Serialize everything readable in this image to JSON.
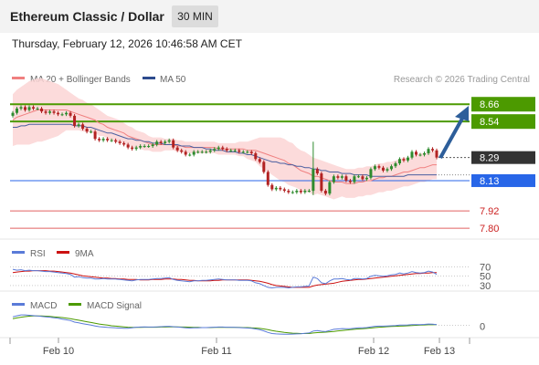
{
  "header": {
    "title": "Ethereum Classic / Dollar",
    "timeframe": "30 MIN",
    "datetime": "Thursday, February 12, 2026 10:46:58 AM CET"
  },
  "legend": {
    "ma20_label": "MA 20 + Bollinger Bands",
    "ma50_label": "MA 50",
    "copyright": "Research © 2026 Trading Central",
    "rsi_label": "RSI",
    "rsi9_label": "9MA",
    "macd_label": "MACD",
    "macd_signal_label": "MACD Signal"
  },
  "colors": {
    "green_level": "#4c9a00",
    "pivot_blue": "#2866e8",
    "red_level": "#e06060",
    "current_badge": "#333333",
    "arrow": "#2d5e9a",
    "ma20": "#f08080",
    "ma50": "#4a5fa0",
    "bollinger_fill": "#fbd5d5",
    "candle_up": "#2e8b2e",
    "candle_down": "#b22222",
    "rsi": "#5a7bd8",
    "rsi9": "#cc1111",
    "macd": "#5a7bd8",
    "macd_signal": "#4c9a00"
  },
  "chart_data": {
    "type": "candlestick",
    "instrument": "Ethereum Classic / Dollar",
    "interval": "30 MIN",
    "x_ticks": [
      "Feb 10",
      "Feb 11",
      "Feb 12",
      "Feb 13"
    ],
    "levels": [
      {
        "value": 8.66,
        "label": "8.66",
        "kind": "resistance"
      },
      {
        "value": 8.54,
        "label": "8.54",
        "kind": "resistance"
      },
      {
        "value": 8.29,
        "label": "8.29",
        "kind": "current"
      },
      {
        "value": 8.13,
        "label": "8.13",
        "kind": "pivot"
      },
      {
        "value": 7.92,
        "label": "7.92",
        "kind": "support"
      },
      {
        "value": 7.8,
        "label": "7.80",
        "kind": "support"
      }
    ],
    "closes": [
      8.6,
      8.63,
      8.64,
      8.62,
      8.64,
      8.63,
      8.63,
      8.61,
      8.6,
      8.61,
      8.6,
      8.59,
      8.59,
      8.6,
      8.58,
      8.51,
      8.52,
      8.49,
      8.47,
      8.47,
      8.42,
      8.41,
      8.42,
      8.41,
      8.41,
      8.4,
      8.39,
      8.38,
      8.36,
      8.35,
      8.36,
      8.37,
      8.37,
      8.37,
      8.38,
      8.4,
      8.39,
      8.4,
      8.41,
      8.36,
      8.34,
      8.33,
      8.31,
      8.31,
      8.33,
      8.33,
      8.33,
      8.33,
      8.34,
      8.35,
      8.36,
      8.35,
      8.34,
      8.34,
      8.34,
      8.33,
      8.33,
      8.33,
      8.32,
      8.28,
      8.26,
      8.19,
      8.1,
      8.07,
      8.08,
      8.07,
      8.06,
      8.05,
      8.05,
      8.06,
      8.05,
      8.06,
      8.06,
      8.21,
      8.18,
      8.06,
      8.04,
      8.12,
      8.16,
      8.15,
      8.16,
      8.13,
      8.12,
      8.16,
      8.16,
      8.14,
      8.15,
      8.21,
      8.23,
      8.22,
      8.2,
      8.21,
      8.23,
      8.25,
      8.28,
      8.27,
      8.29,
      8.33,
      8.31,
      8.31,
      8.32,
      8.35,
      8.34,
      8.29
    ],
    "ma20": [
      8.55,
      8.57,
      8.58,
      8.59,
      8.6,
      8.61,
      8.62,
      8.62,
      8.62,
      8.62,
      8.62,
      8.62,
      8.62,
      8.62,
      8.61,
      8.6,
      8.59,
      8.58,
      8.57,
      8.56,
      8.55,
      8.53,
      8.52,
      8.5,
      8.49,
      8.48,
      8.47,
      8.46,
      8.44,
      8.43,
      8.42,
      8.41,
      8.4,
      8.39,
      8.38,
      8.38,
      8.38,
      8.38,
      8.38,
      8.38,
      8.37,
      8.37,
      8.36,
      8.36,
      8.36,
      8.36,
      8.36,
      8.36,
      8.36,
      8.36,
      8.35,
      8.35,
      8.35,
      8.35,
      8.35,
      8.35,
      8.35,
      8.34,
      8.34,
      8.34,
      8.33,
      8.32,
      8.31,
      8.3,
      8.29,
      8.28,
      8.27,
      8.25,
      8.24,
      8.22,
      8.2,
      8.19,
      8.18,
      8.16,
      8.16,
      8.15,
      8.14,
      8.13,
      8.12,
      8.12,
      8.12,
      8.11,
      8.11,
      8.11,
      8.12,
      8.12,
      8.13,
      8.13,
      8.14,
      8.15,
      8.15,
      8.16,
      8.16,
      8.17,
      8.18,
      8.19,
      8.19,
      8.2,
      8.21,
      8.22,
      8.22,
      8.23,
      8.24,
      8.24
    ],
    "ma50": [
      8.5,
      8.5,
      8.51,
      8.51,
      8.52,
      8.52,
      8.52,
      8.52,
      8.52,
      8.52,
      8.52,
      8.52,
      8.52,
      8.52,
      8.52,
      8.51,
      8.51,
      8.51,
      8.5,
      8.5,
      8.49,
      8.48,
      8.47,
      8.46,
      8.46,
      8.45,
      8.44,
      8.43,
      8.42,
      8.42,
      8.41,
      8.41,
      8.4,
      8.4,
      8.39,
      8.39,
      8.39,
      8.38,
      8.38,
      8.38,
      8.38,
      8.37,
      8.37,
      8.37,
      8.36,
      8.36,
      8.36,
      8.35,
      8.35,
      8.34,
      8.34,
      8.34,
      8.33,
      8.33,
      8.33,
      8.32,
      8.32,
      8.31,
      8.31,
      8.3,
      8.29,
      8.28,
      8.27,
      8.26,
      8.26,
      8.25,
      8.25,
      8.24,
      8.24,
      8.23,
      8.23,
      8.22,
      8.22,
      8.21,
      8.21,
      8.2,
      8.2,
      8.19,
      8.19,
      8.19,
      8.18,
      8.18,
      8.18,
      8.17,
      8.17,
      8.17,
      8.17,
      8.16,
      8.16,
      8.16,
      8.16,
      8.16,
      8.16,
      8.16,
      8.16,
      8.16,
      8.17,
      8.17,
      8.17,
      8.17,
      8.17,
      8.17,
      8.17,
      8.17
    ],
    "bb_width": [
      0.18,
      0.19,
      0.2,
      0.21,
      0.22,
      0.22,
      0.22,
      0.22,
      0.21,
      0.2,
      0.19,
      0.18,
      0.16,
      0.14,
      0.13,
      0.12,
      0.11,
      0.11,
      0.1,
      0.1,
      0.09,
      0.09,
      0.08,
      0.08,
      0.08,
      0.08,
      0.08,
      0.07,
      0.07,
      0.07,
      0.06,
      0.06,
      0.06,
      0.05,
      0.05,
      0.05,
      0.05,
      0.04,
      0.04,
      0.04,
      0.04,
      0.04,
      0.04,
      0.04,
      0.04,
      0.04,
      0.04,
      0.04,
      0.04,
      0.04,
      0.04,
      0.04,
      0.04,
      0.04,
      0.04,
      0.05,
      0.05,
      0.06,
      0.07,
      0.08,
      0.1,
      0.11,
      0.12,
      0.13,
      0.14,
      0.15,
      0.15,
      0.15,
      0.15,
      0.14,
      0.14,
      0.14,
      0.13,
      0.13,
      0.12,
      0.12,
      0.12,
      0.12,
      0.12,
      0.11,
      0.1,
      0.1,
      0.1,
      0.1,
      0.1,
      0.1,
      0.1,
      0.1,
      0.1,
      0.1,
      0.1,
      0.1,
      0.1,
      0.1,
      0.1,
      0.1,
      0.1,
      0.1,
      0.1,
      0.1,
      0.1,
      0.1,
      0.1,
      0.1
    ],
    "rsi": [
      65,
      63,
      64,
      62,
      63,
      62,
      62,
      61,
      60,
      60,
      59,
      58,
      57,
      56,
      54,
      48,
      49,
      47,
      46,
      46,
      44,
      44,
      45,
      44,
      44,
      44,
      43,
      42,
      41,
      40,
      42,
      43,
      43,
      43,
      44,
      45,
      45,
      46,
      47,
      43,
      41,
      40,
      39,
      38,
      40,
      40,
      41,
      41,
      42,
      43,
      44,
      43,
      42,
      42,
      42,
      41,
      41,
      41,
      40,
      36,
      34,
      30,
      26,
      25,
      26,
      26,
      26,
      25,
      26,
      27,
      27,
      28,
      29,
      48,
      45,
      36,
      34,
      40,
      44,
      44,
      45,
      43,
      42,
      45,
      45,
      44,
      45,
      50,
      52,
      51,
      50,
      51,
      53,
      54,
      57,
      55,
      57,
      60,
      58,
      57,
      58,
      61,
      59,
      54
    ],
    "rsi9": [
      58,
      59,
      60,
      61,
      61,
      62,
      62,
      62,
      62,
      61,
      61,
      60,
      59,
      58,
      57,
      55,
      53,
      51,
      50,
      49,
      48,
      47,
      46,
      46,
      45,
      45,
      44,
      44,
      43,
      43,
      43,
      42,
      42,
      42,
      43,
      43,
      43,
      44,
      44,
      44,
      43,
      43,
      42,
      41,
      41,
      40,
      40,
      40,
      40,
      41,
      41,
      42,
      42,
      42,
      42,
      42,
      42,
      42,
      41,
      40,
      39,
      37,
      35,
      32,
      30,
      29,
      28,
      27,
      26,
      26,
      26,
      26,
      26,
      29,
      31,
      32,
      33,
      34,
      35,
      37,
      39,
      40,
      41,
      42,
      43,
      43,
      44,
      45,
      46,
      47,
      48,
      49,
      50,
      51,
      52,
      53,
      54,
      55,
      56,
      56,
      57,
      57,
      58,
      58
    ],
    "rsi_ticks": [
      "70",
      "50",
      "30"
    ],
    "macd": [
      0.06,
      0.065,
      0.07,
      0.07,
      0.068,
      0.066,
      0.064,
      0.062,
      0.06,
      0.058,
      0.055,
      0.052,
      0.048,
      0.044,
      0.04,
      0.032,
      0.028,
      0.024,
      0.02,
      0.016,
      0.012,
      0.008,
      0.006,
      0.004,
      0.003,
      0.002,
      0.001,
      0.0,
      0.0,
      0.002,
      0.005,
      0.006,
      0.007,
      0.006,
      0.006,
      0.007,
      0.008,
      0.009,
      0.01,
      0.008,
      0.006,
      0.004,
      0.002,
      0.001,
      0.002,
      0.002,
      0.003,
      0.003,
      0.004,
      0.005,
      0.006,
      0.006,
      0.005,
      0.005,
      0.004,
      0.003,
      0.002,
      0.001,
      0.0,
      -0.004,
      -0.008,
      -0.014,
      -0.022,
      -0.028,
      -0.03,
      -0.031,
      -0.032,
      -0.032,
      -0.031,
      -0.03,
      -0.029,
      -0.027,
      -0.025,
      -0.015,
      -0.012,
      -0.016,
      -0.018,
      -0.012,
      -0.006,
      -0.004,
      -0.002,
      -0.003,
      -0.003,
      0.0,
      0.002,
      0.002,
      0.003,
      0.007,
      0.01,
      0.011,
      0.011,
      0.012,
      0.013,
      0.014,
      0.016,
      0.016,
      0.017,
      0.019,
      0.019,
      0.019,
      0.02,
      0.022,
      0.021,
      0.019
    ],
    "macd_signal": [
      0.05,
      0.054,
      0.058,
      0.061,
      0.063,
      0.064,
      0.064,
      0.064,
      0.063,
      0.062,
      0.06,
      0.058,
      0.056,
      0.053,
      0.05,
      0.046,
      0.042,
      0.038,
      0.034,
      0.03,
      0.026,
      0.022,
      0.019,
      0.016,
      0.013,
      0.011,
      0.009,
      0.007,
      0.005,
      0.004,
      0.004,
      0.004,
      0.005,
      0.005,
      0.005,
      0.005,
      0.006,
      0.006,
      0.007,
      0.007,
      0.007,
      0.006,
      0.006,
      0.005,
      0.004,
      0.004,
      0.003,
      0.003,
      0.003,
      0.004,
      0.004,
      0.004,
      0.004,
      0.004,
      0.004,
      0.004,
      0.003,
      0.003,
      0.002,
      0.001,
      -0.001,
      -0.004,
      -0.008,
      -0.012,
      -0.016,
      -0.019,
      -0.022,
      -0.024,
      -0.026,
      -0.027,
      -0.028,
      -0.028,
      -0.028,
      -0.025,
      -0.023,
      -0.022,
      -0.021,
      -0.019,
      -0.017,
      -0.014,
      -0.012,
      -0.01,
      -0.008,
      -0.006,
      -0.004,
      -0.003,
      -0.001,
      0.001,
      0.003,
      0.005,
      0.006,
      0.008,
      0.009,
      0.01,
      0.011,
      0.012,
      0.013,
      0.014,
      0.015,
      0.016,
      0.017,
      0.018,
      0.018,
      0.019
    ],
    "macd_ticks": [
      "0"
    ]
  }
}
